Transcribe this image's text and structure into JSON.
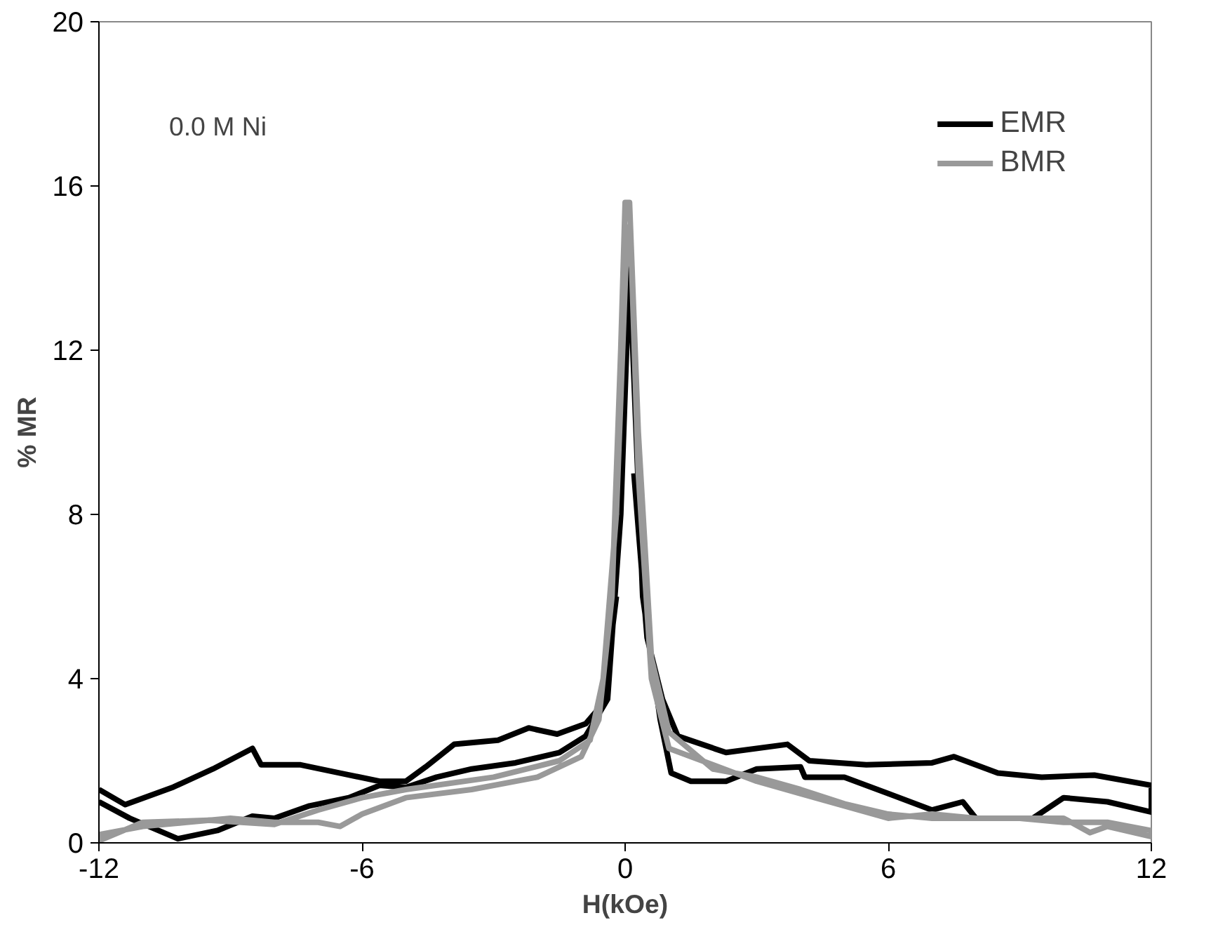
{
  "chart_data": {
    "type": "line",
    "xlabel": "H(kOe)",
    "ylabel": "% MR",
    "annotations": [
      "0.0 M Ni"
    ],
    "xlim": [
      -12,
      12
    ],
    "ylim": [
      0,
      20
    ],
    "xticks": [
      -12,
      -6,
      0,
      6,
      12
    ],
    "yticks": [
      0,
      4,
      8,
      12,
      16,
      20
    ],
    "grid": false,
    "legend": "top right",
    "marker": "none",
    "line_style": "solid",
    "series": [
      {
        "name": "EMR",
        "color": "#000000",
        "x": [
          -12,
          -11.4,
          -10.3,
          -9.4,
          -8.5,
          -8.3,
          -7.4,
          -6.5,
          -5.6,
          -5,
          -4.55,
          -3.9,
          -2.9,
          -2.2,
          -1.55,
          -0.9,
          -0.5,
          -0.2,
          0,
          0.2,
          0.5,
          0.85,
          1.2,
          2.3,
          3.7,
          4.2,
          5.5,
          7,
          7.5,
          8.5,
          9.5,
          10.7,
          12,
          12,
          11,
          10,
          9.3,
          8,
          7.7,
          7,
          6,
          5,
          4.1,
          4,
          3,
          2.3,
          1.5,
          1.05,
          0.8,
          0.4,
          0.1,
          -0.1,
          -0.4,
          -0.9,
          -1.5,
          -2.5,
          -3.5,
          -4.3,
          -5,
          -5.6,
          -6.3,
          -7.2,
          -8,
          -8.5,
          -9.3,
          -10.2,
          -11.3,
          -12
        ],
        "values": [
          1.3,
          0.93,
          1.36,
          1.8,
          2.3,
          1.9,
          1.9,
          1.7,
          1.5,
          1.5,
          1.85,
          2.4,
          2.5,
          2.8,
          2.65,
          2.9,
          3.4,
          6,
          null,
          9,
          5,
          3.5,
          2.6,
          2.2,
          2.4,
          2.0,
          1.9,
          1.95,
          2.1,
          1.7,
          1.6,
          1.65,
          1.4,
          0.75,
          1.0,
          1.1,
          0.6,
          0.6,
          1.0,
          0.8,
          1.2,
          1.6,
          1.6,
          1.85,
          1.8,
          1.5,
          1.5,
          1.7,
          3.0,
          6,
          14,
          8,
          3.5,
          2.6,
          2.2,
          1.95,
          1.8,
          1.6,
          1.35,
          1.4,
          1.1,
          0.9,
          0.6,
          0.65,
          0.3,
          0.1,
          0.6,
          1.0
        ]
      },
      {
        "name": "BMR",
        "color": "#999999",
        "x": [
          -12,
          -11,
          -10,
          -9,
          -8,
          -7,
          -6.5,
          -6,
          -5,
          -3.5,
          -2,
          -1,
          -0.6,
          -0.3,
          -0.1,
          0,
          0.1,
          0.3,
          0.6,
          1,
          2,
          3,
          4,
          5,
          6,
          7,
          8,
          9,
          10,
          11,
          12,
          12,
          11,
          10.6,
          10,
          9,
          8,
          7,
          6,
          5,
          4,
          3,
          2,
          1,
          0.6,
          0.3,
          0.15,
          0.05,
          -0.2,
          -0.5,
          -0.8,
          -1.5,
          -3,
          -5,
          -6,
          -7,
          -8,
          -9.5,
          -11,
          -12
        ],
        "values": [
          0.2,
          0.4,
          0.5,
          0.6,
          0.5,
          0.5,
          0.4,
          0.7,
          1.1,
          1.3,
          1.6,
          2.1,
          3.0,
          6,
          12,
          15.6,
          15.6,
          10,
          4.5,
          2.7,
          1.8,
          1.6,
          1.3,
          0.95,
          0.7,
          0.6,
          0.6,
          0.6,
          0.5,
          0.5,
          0.3,
          0.15,
          0.4,
          0.25,
          0.6,
          0.6,
          0.6,
          0.7,
          0.6,
          0.9,
          1.2,
          1.5,
          1.9,
          2.3,
          4,
          9,
          14,
          15,
          8,
          4,
          2.5,
          2.0,
          1.6,
          1.3,
          1.1,
          0.8,
          0.45,
          0.55,
          0.5,
          0.05
        ]
      }
    ]
  }
}
